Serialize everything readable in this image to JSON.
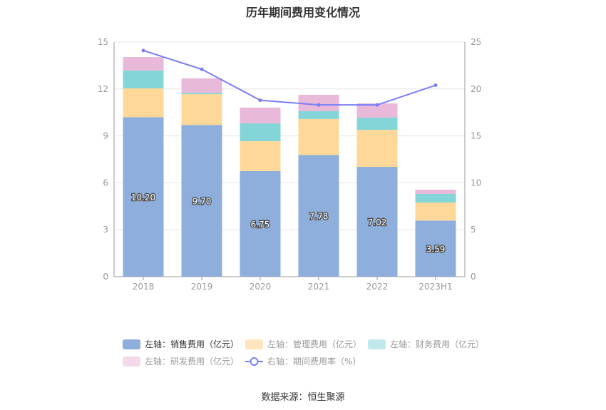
{
  "chart_data": {
    "type": "bar",
    "title": "历年期间费用变化情况",
    "categories": [
      "2018",
      "2019",
      "2020",
      "2021",
      "2022",
      "2023H1"
    ],
    "series": [
      {
        "name": "左轴：销售费用（亿元）",
        "axis": "left",
        "color": "#8eaedb",
        "values": [
          10.2,
          9.7,
          6.75,
          7.78,
          7.02,
          3.59
        ],
        "labels": [
          "10.20",
          "9.70",
          "6.75",
          "7.78",
          "7.02",
          "3.59"
        ]
      },
      {
        "name": "左轴：管理费用（亿元）",
        "axis": "left",
        "color": "#fed898",
        "values": [
          1.84,
          1.97,
          1.91,
          2.3,
          2.37,
          1.15
        ]
      },
      {
        "name": "左轴：财务费用（亿元）",
        "axis": "left",
        "color": "#84d5d8",
        "values": [
          1.14,
          0.09,
          1.14,
          0.5,
          0.78,
          0.55
        ]
      },
      {
        "name": "左轴：研发费用（亿元）",
        "axis": "left",
        "color": "#e8b9d9",
        "values": [
          0.86,
          0.92,
          1.01,
          1.05,
          0.91,
          0.27
        ]
      },
      {
        "name": "右轴：期间费用率（%）",
        "axis": "right",
        "type": "line",
        "color": "#7a7ef5",
        "values": [
          24.1,
          22.1,
          18.8,
          18.3,
          18.3,
          20.4
        ]
      }
    ],
    "left_axis": {
      "ylim": [
        0,
        15
      ],
      "ticks": [
        "0",
        "3",
        "6",
        "9",
        "12",
        "15"
      ]
    },
    "right_axis": {
      "ylim": [
        0,
        25
      ],
      "ticks": [
        "0",
        "5",
        "10",
        "15",
        "20",
        "25"
      ]
    },
    "legend_swatch_colors": [
      "#8eaedb",
      "#fee5bd",
      "#c1e9eb",
      "#f4d9ea"
    ],
    "grid": true,
    "legend_position": "bottom"
  },
  "source": "数据来源：恒生聚源"
}
